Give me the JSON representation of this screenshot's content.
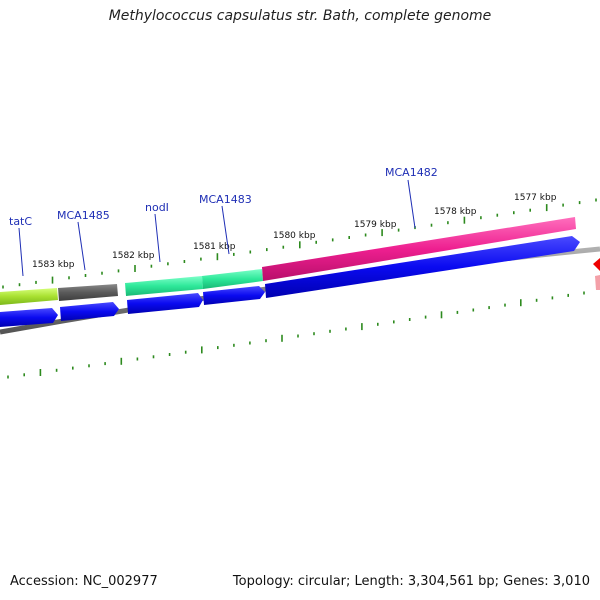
{
  "title": "Methylococcus capsulatus str. Bath, complete genome",
  "footer": {
    "accession": "Accession: NC_002977",
    "summary": "Topology: circular; Length: 3,304,561 bp; Genes: 3,010"
  },
  "colors": {
    "cds_blue": "#0a0af0",
    "genome_line": "#808080",
    "tick_green": "#2d8a1e",
    "label_blue": "#1f2fb5",
    "tatC": "#a8e030",
    "MCA1485": "#595959",
    "nodI": "#2ee89a",
    "MCA1483": "#2ee89a",
    "MCA1482": "#ee1f90",
    "offscreen_red": "#ee0000"
  },
  "gene_labels": [
    {
      "id": "tatC",
      "text": "tatC"
    },
    {
      "id": "MCA1485",
      "text": "MCA1485"
    },
    {
      "id": "nodI",
      "text": "nodI"
    },
    {
      "id": "MCA1483",
      "text": "MCA1483"
    },
    {
      "id": "MCA1482",
      "text": "MCA1482"
    }
  ],
  "kbp_labels": [
    {
      "text": "1583 kbp"
    },
    {
      "text": "1582 kbp"
    },
    {
      "text": "1581 kbp"
    },
    {
      "text": "1580 kbp"
    },
    {
      "text": "1579 kbp"
    },
    {
      "text": "1578 kbp"
    },
    {
      "text": "1577 kbp"
    }
  ]
}
